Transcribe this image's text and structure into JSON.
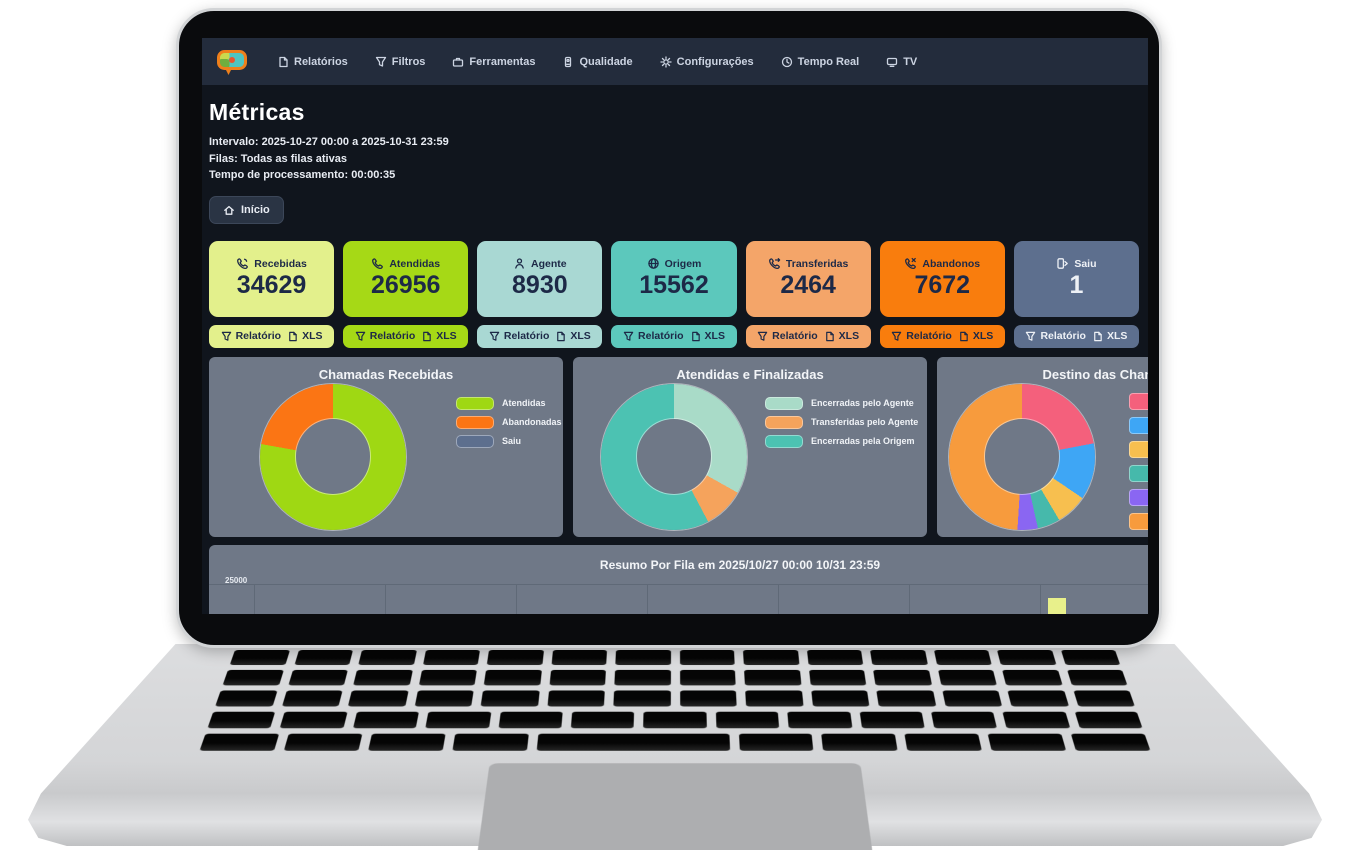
{
  "colors": {
    "screen_bg": "#10151d",
    "navbar_bg": "#232c3c",
    "panel_bg": "#6f7887",
    "dark_text": "#1d2947"
  },
  "nav": {
    "items": [
      {
        "label": "Relatórios"
      },
      {
        "label": "Filtros"
      },
      {
        "label": "Ferramentas"
      },
      {
        "label": "Qualidade"
      },
      {
        "label": "Configurações"
      },
      {
        "label": "Tempo Real"
      },
      {
        "label": "TV"
      }
    ]
  },
  "header": {
    "title": "Métricas",
    "interval": "Intervalo: 2025-10-27 00:00 a 2025-10-31 23:59",
    "queues": "Filas: Todas as filas ativas",
    "processing": "Tempo de processamento: 00:00:35",
    "home_button": "Início"
  },
  "cards": [
    {
      "label": "Recebidas",
      "value": "34629",
      "bg": "#e3f08c",
      "text": "#1d2947",
      "report_label": "Relatório",
      "xls_label": "XLS"
    },
    {
      "label": "Atendidas",
      "value": "26956",
      "bg": "#a6d916",
      "text": "#1d2947",
      "report_label": "Relatório",
      "xls_label": "XLS"
    },
    {
      "label": "Agente",
      "value": "8930",
      "bg": "#a9d8d3",
      "text": "#1d2947",
      "report_label": "Relatório",
      "xls_label": "XLS"
    },
    {
      "label": "Origem",
      "value": "15562",
      "bg": "#5cc8bc",
      "text": "#1d2947",
      "report_label": "Relatório",
      "xls_label": "XLS"
    },
    {
      "label": "Transferidas",
      "value": "2464",
      "bg": "#f4a569",
      "text": "#1d2947",
      "report_label": "Relatório",
      "xls_label": "XLS"
    },
    {
      "label": "Abandonos",
      "value": "7672",
      "bg": "#f97d0d",
      "text": "#1d2947",
      "report_label": "Relatório",
      "xls_label": "XLS"
    },
    {
      "label": "Saiu",
      "value": "1",
      "bg": "#5d6f8e",
      "text": "#eef1f6",
      "report_label": "Relatório",
      "xls_label": "XLS"
    }
  ],
  "chart_data": [
    {
      "type": "pie",
      "title": "Chamadas Recebidas",
      "legend_position": "right",
      "series": [
        {
          "name": "Atendidas",
          "value": 26956,
          "color": "#9fd813"
        },
        {
          "name": "Abandonadas",
          "value": 7672,
          "color": "#fb7514"
        },
        {
          "name": "Saiu",
          "value": 1,
          "color": "#5d6f8e"
        }
      ]
    },
    {
      "type": "pie",
      "title": "Atendidas e Finalizadas",
      "legend_position": "right",
      "series": [
        {
          "name": "Encerradas pelo Agente",
          "value": 8930,
          "color": "#a9dbc8"
        },
        {
          "name": "Transferidas pelo Agente",
          "value": 2464,
          "color": "#f5a35c"
        },
        {
          "name": "Encerradas pela Origem",
          "value": 15562,
          "color": "#4cc2b2"
        }
      ]
    },
    {
      "type": "pie",
      "title": "Destino das Chamadas",
      "legend_position": "right",
      "series": [
        {
          "name": "",
          "value": 22,
          "color": "#f4607c"
        },
        {
          "name": "",
          "value": 12.5,
          "color": "#3ea6f5"
        },
        {
          "name": "",
          "value": 7,
          "color": "#f7bf4f"
        },
        {
          "name": "",
          "value": 5,
          "color": "#46b9ab"
        },
        {
          "name": "",
          "value": 4.5,
          "color": "#8a66f2"
        },
        {
          "name": "",
          "value": 49,
          "color": "#f79b3d"
        }
      ]
    },
    {
      "type": "bar",
      "title": "Resumo Por Fila em 2025/10/27 00:00  10/31 23:59",
      "ytick": "25000",
      "ylim": [
        0,
        25000
      ],
      "grid": true,
      "visible_bar": {
        "color": "#e8f08b"
      }
    }
  ]
}
